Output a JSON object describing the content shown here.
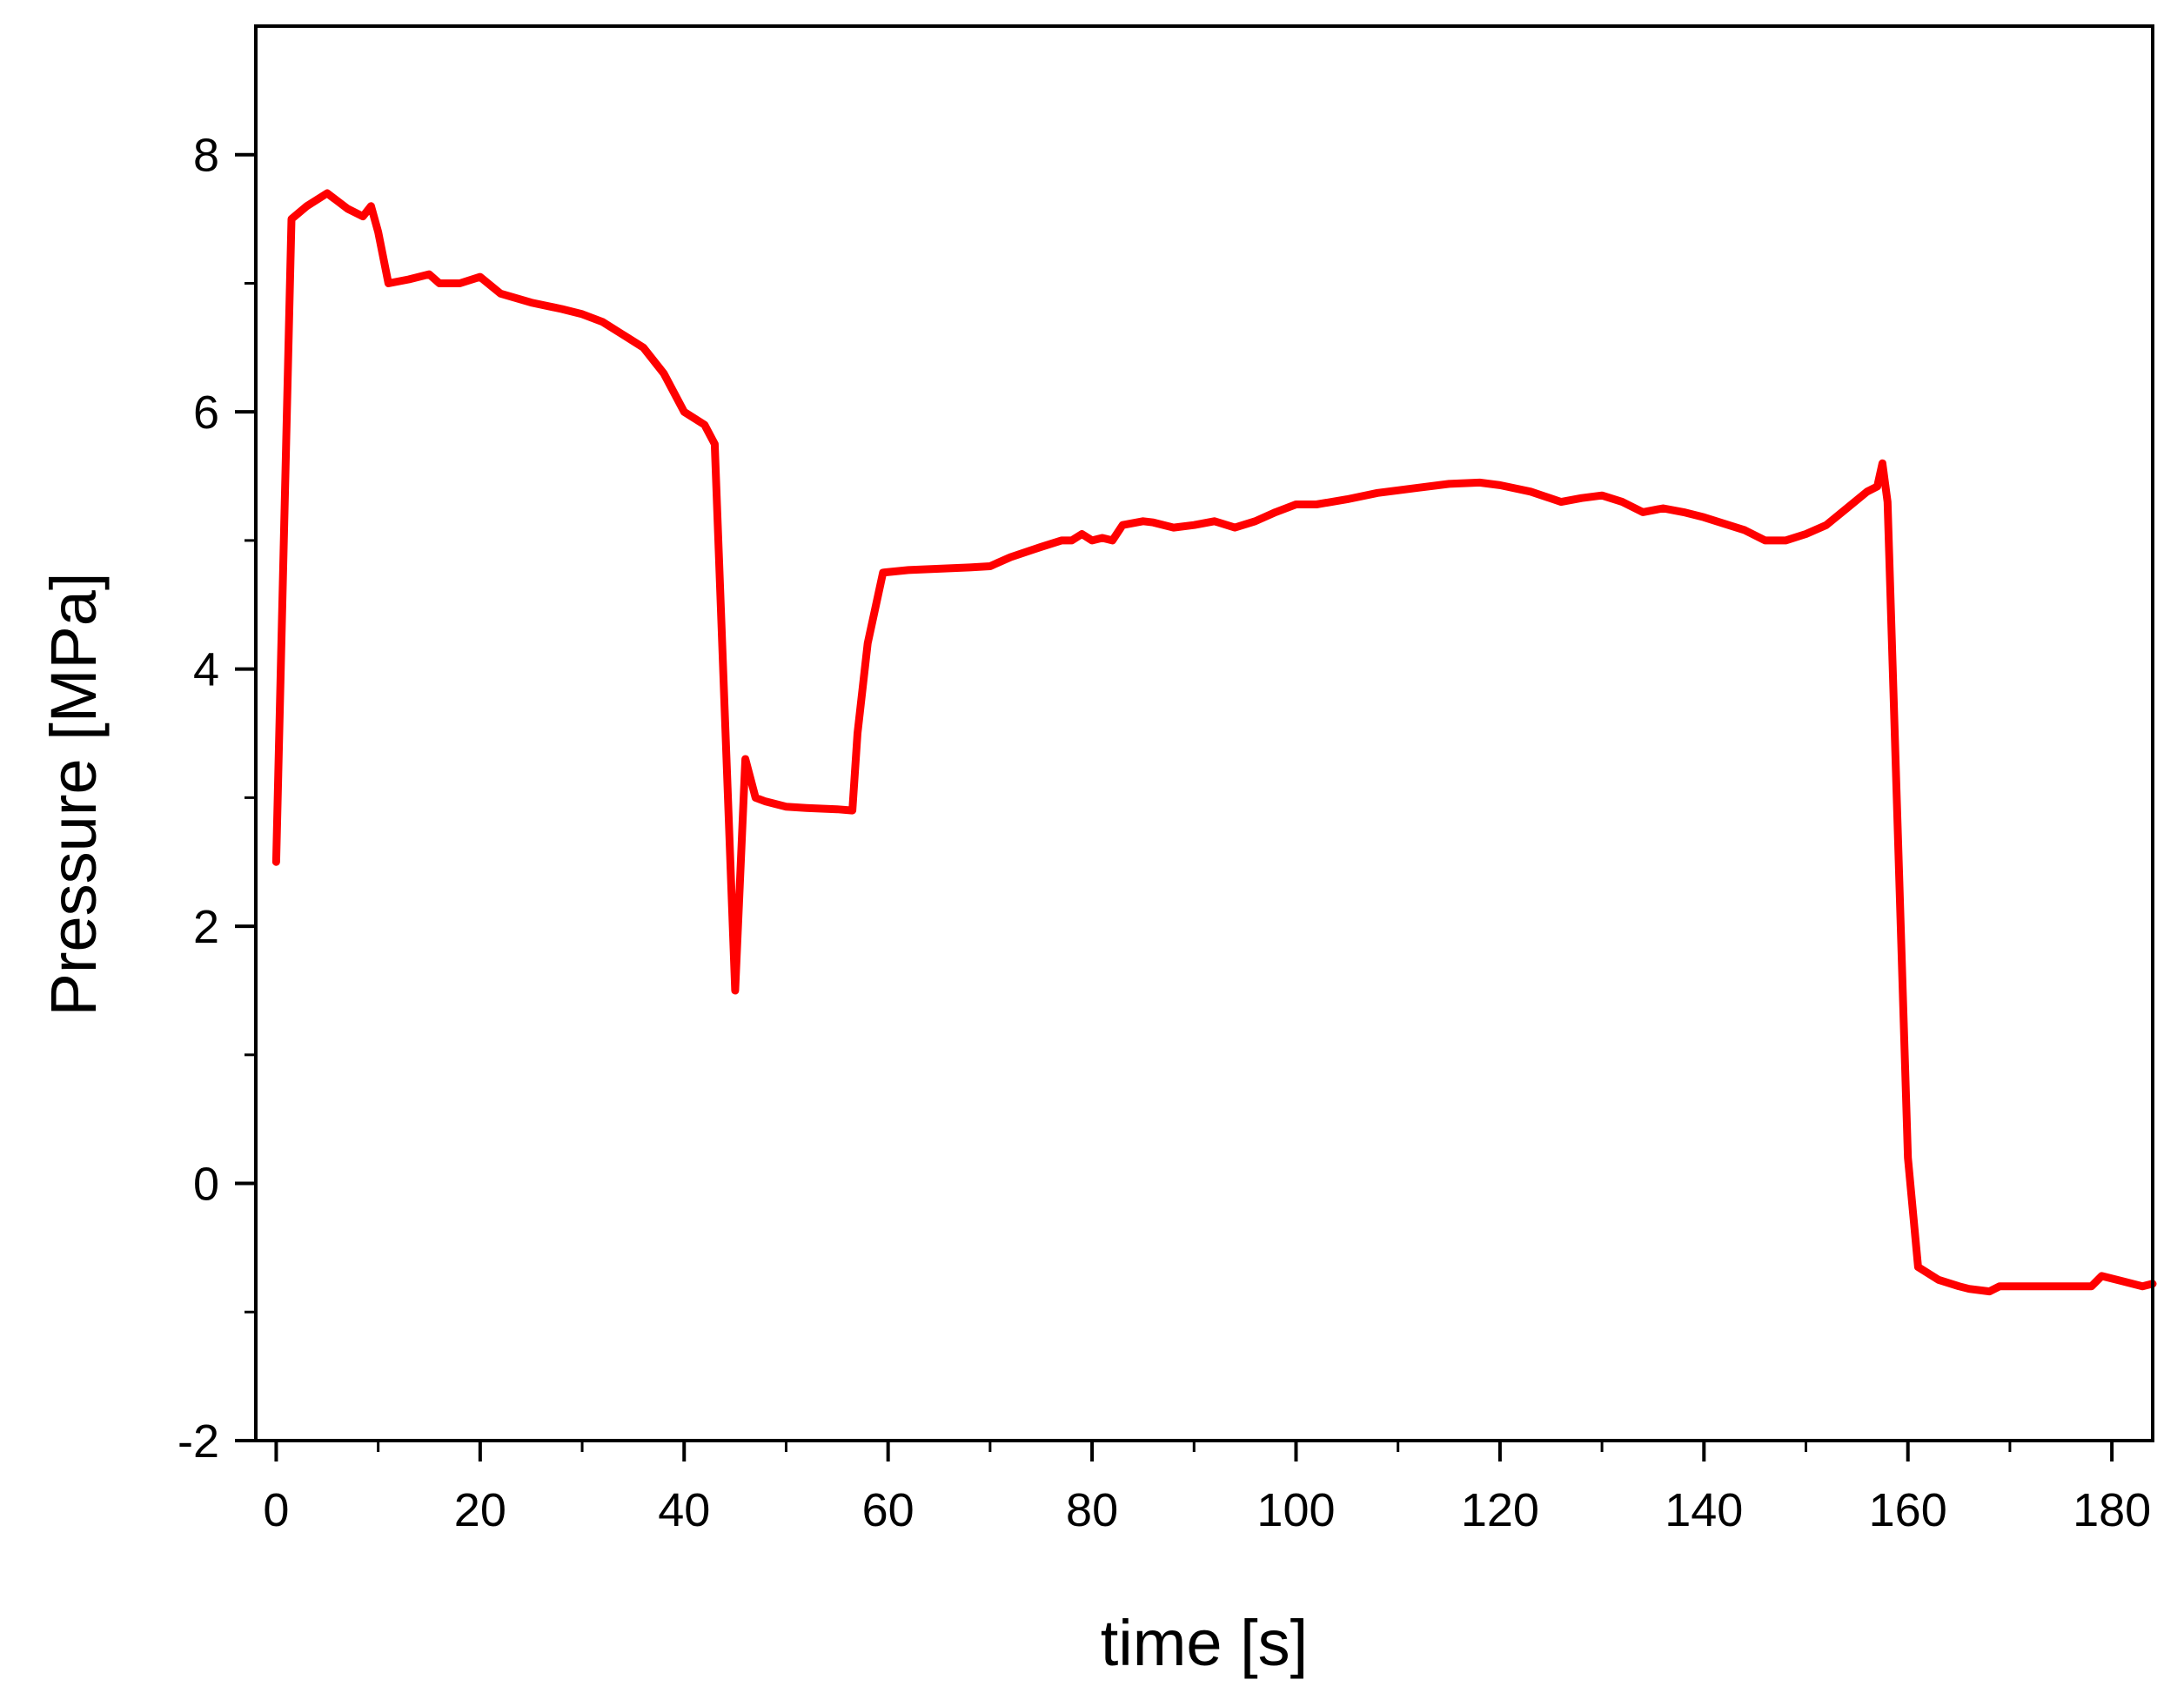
{
  "chart_data": {
    "type": "line",
    "title": "",
    "xlabel": "time [s]",
    "ylabel": "Pressure [MPa]",
    "xlim": [
      -2,
      184
    ],
    "ylim": [
      -2,
      9
    ],
    "xticks": [
      0,
      20,
      40,
      60,
      80,
      100,
      120,
      140,
      160,
      180
    ],
    "xtick_labels": [
      "0",
      "20",
      "40",
      "60",
      "80",
      "100",
      "120",
      "140",
      "160",
      "180"
    ],
    "xminor": [
      10,
      30,
      50,
      70,
      90,
      110,
      130,
      150,
      170
    ],
    "yticks": [
      -2,
      0,
      2,
      4,
      6,
      8
    ],
    "ytick_labels": [
      "-2",
      "0",
      "2",
      "4",
      "6",
      "8"
    ],
    "yminor": [
      -1,
      1,
      3,
      5,
      7
    ],
    "grid": false,
    "legend": "none",
    "series": [
      {
        "name": "Pressure",
        "color": "#ff0000",
        "x": [
          0,
          1.5,
          3,
          5,
          7,
          8.5,
          9.3,
          10,
          11,
          13,
          15,
          16,
          18,
          20,
          22,
          25,
          28,
          30,
          32,
          34,
          36,
          38,
          40,
          42,
          43,
          45,
          46,
          47,
          48,
          50,
          52,
          55,
          56.5,
          57,
          58,
          59.5,
          62,
          65,
          68,
          70,
          72,
          75,
          77,
          78,
          79,
          80,
          81,
          82,
          83,
          85,
          86,
          88,
          90,
          92,
          94,
          96,
          98,
          100,
          102,
          105,
          108,
          110,
          112,
          115,
          118,
          120,
          123,
          126,
          128,
          130,
          132,
          134,
          136,
          138,
          140,
          142,
          144,
          146,
          148,
          150,
          152,
          154,
          156,
          157,
          157.5,
          158,
          160,
          161,
          163,
          165,
          166,
          168,
          169,
          172,
          175,
          178,
          179,
          181,
          183,
          184
        ],
        "y": [
          2.5,
          7.5,
          7.6,
          7.7,
          7.58,
          7.52,
          7.6,
          7.4,
          7.0,
          7.03,
          7.07,
          7.0,
          7.0,
          7.05,
          6.92,
          6.85,
          6.8,
          6.76,
          6.7,
          6.6,
          6.5,
          6.3,
          6.0,
          5.9,
          5.75,
          1.5,
          3.3,
          3.0,
          2.97,
          2.93,
          2.92,
          2.91,
          2.9,
          3.5,
          4.2,
          4.75,
          4.77,
          4.78,
          4.79,
          4.8,
          4.87,
          4.95,
          5.0,
          5.0,
          5.05,
          5.0,
          5.02,
          5.0,
          5.12,
          5.15,
          5.14,
          5.1,
          5.12,
          5.15,
          5.1,
          5.15,
          5.22,
          5.28,
          5.28,
          5.32,
          5.37,
          5.39,
          5.41,
          5.44,
          5.45,
          5.43,
          5.38,
          5.3,
          5.33,
          5.35,
          5.3,
          5.22,
          5.25,
          5.22,
          5.18,
          5.13,
          5.08,
          5.0,
          5.0,
          5.05,
          5.12,
          5.25,
          5.38,
          5.42,
          5.6,
          5.3,
          0.2,
          -0.65,
          -0.75,
          -0.8,
          -0.82,
          -0.84,
          -0.8,
          -0.8,
          -0.8,
          -0.8,
          -0.72,
          -0.76,
          -0.8,
          -0.78
        ]
      }
    ]
  }
}
